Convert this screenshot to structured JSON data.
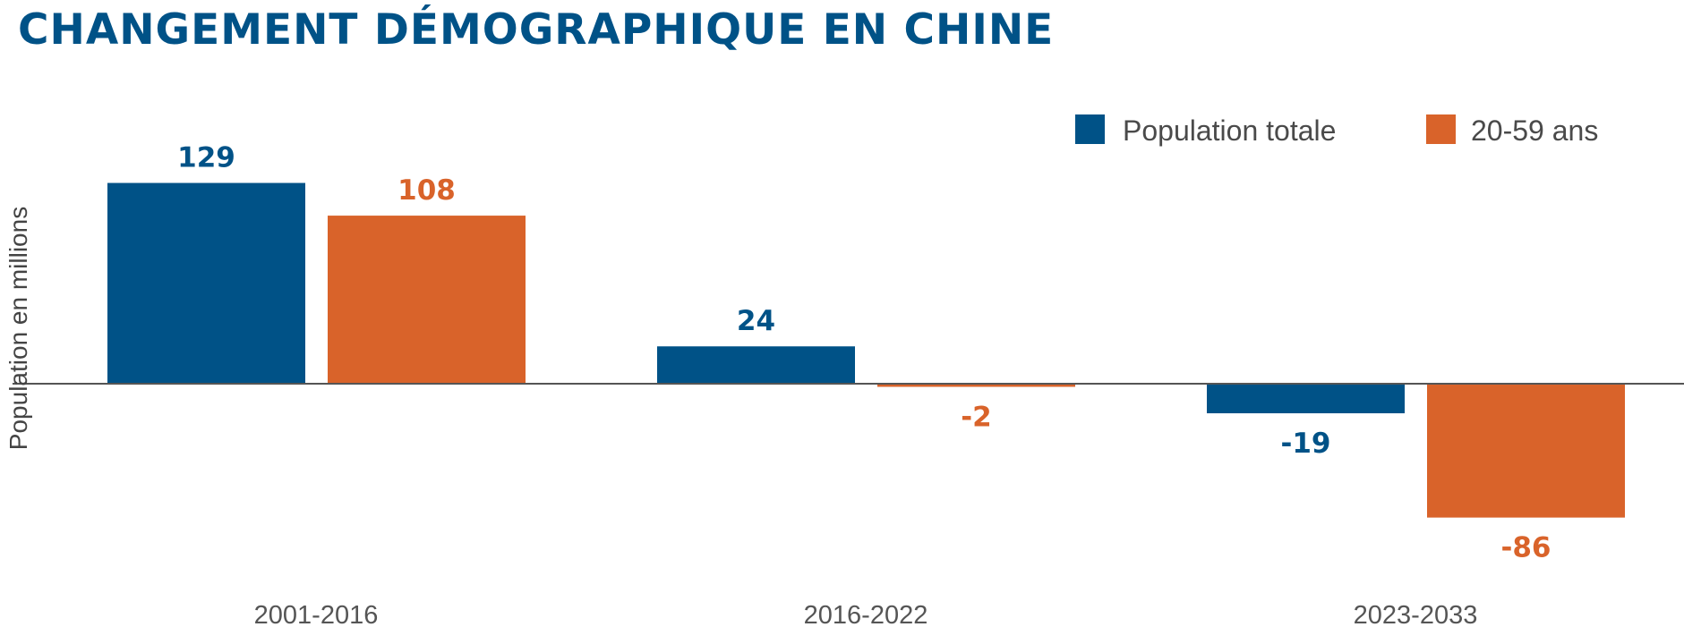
{
  "chart_data": {
    "type": "bar",
    "title": "CHANGEMENT DÉMOGRAPHIQUE EN CHINE",
    "ylabel": "Population en millions",
    "xlabel": "",
    "categories": [
      "2001-2016",
      "2016-2022",
      "2023-2033"
    ],
    "series": [
      {
        "name": "Population totale",
        "color": "#005287",
        "values": [
          129,
          24,
          -19
        ]
      },
      {
        "name": "20-59 ans",
        "color": "#D9632A",
        "values": [
          108,
          -2,
          -86
        ]
      }
    ],
    "ylim": [
      -100,
      150
    ],
    "grid": false,
    "legend_position": "top-right"
  }
}
